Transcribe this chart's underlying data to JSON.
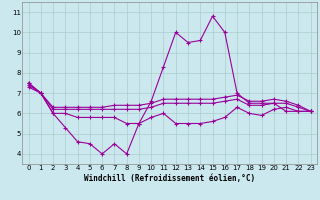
{
  "xlabel": "Windchill (Refroidissement éolien,°C)",
  "background_color": "#cce8ef",
  "grid_color": "#aacccc",
  "line_color": "#990099",
  "hours": [
    0,
    1,
    2,
    3,
    4,
    5,
    6,
    7,
    8,
    9,
    10,
    11,
    12,
    13,
    14,
    15,
    16,
    17,
    18,
    19,
    20,
    21,
    22,
    23
  ],
  "series1": [
    7.5,
    7.0,
    6.0,
    5.3,
    4.6,
    4.5,
    4.0,
    4.5,
    4.0,
    5.5,
    6.6,
    8.3,
    10.0,
    9.5,
    9.6,
    10.8,
    10.0,
    7.0,
    6.5,
    6.5,
    6.5,
    6.1,
    6.1,
    6.1
  ],
  "series2": [
    7.5,
    7.0,
    6.0,
    6.0,
    5.8,
    5.8,
    5.8,
    5.8,
    5.5,
    5.5,
    5.8,
    6.0,
    5.5,
    5.5,
    5.5,
    5.6,
    5.8,
    6.3,
    6.0,
    5.9,
    6.2,
    6.3,
    6.1,
    6.1
  ],
  "series3": [
    7.4,
    7.0,
    6.2,
    6.2,
    6.2,
    6.2,
    6.2,
    6.2,
    6.2,
    6.2,
    6.3,
    6.5,
    6.5,
    6.5,
    6.5,
    6.5,
    6.6,
    6.7,
    6.4,
    6.4,
    6.5,
    6.5,
    6.3,
    6.1
  ],
  "series4": [
    7.3,
    7.0,
    6.3,
    6.3,
    6.3,
    6.3,
    6.3,
    6.4,
    6.4,
    6.4,
    6.5,
    6.7,
    6.7,
    6.7,
    6.7,
    6.7,
    6.8,
    6.9,
    6.6,
    6.6,
    6.7,
    6.6,
    6.4,
    6.1
  ],
  "ylim": [
    3.5,
    11.5
  ],
  "yticks": [
    4,
    5,
    6,
    7,
    8,
    9,
    10,
    11
  ],
  "xlim": [
    -0.5,
    23.5
  ],
  "xticks": [
    0,
    1,
    2,
    3,
    4,
    5,
    6,
    7,
    8,
    9,
    10,
    11,
    12,
    13,
    14,
    15,
    16,
    17,
    18,
    19,
    20,
    21,
    22,
    23
  ]
}
